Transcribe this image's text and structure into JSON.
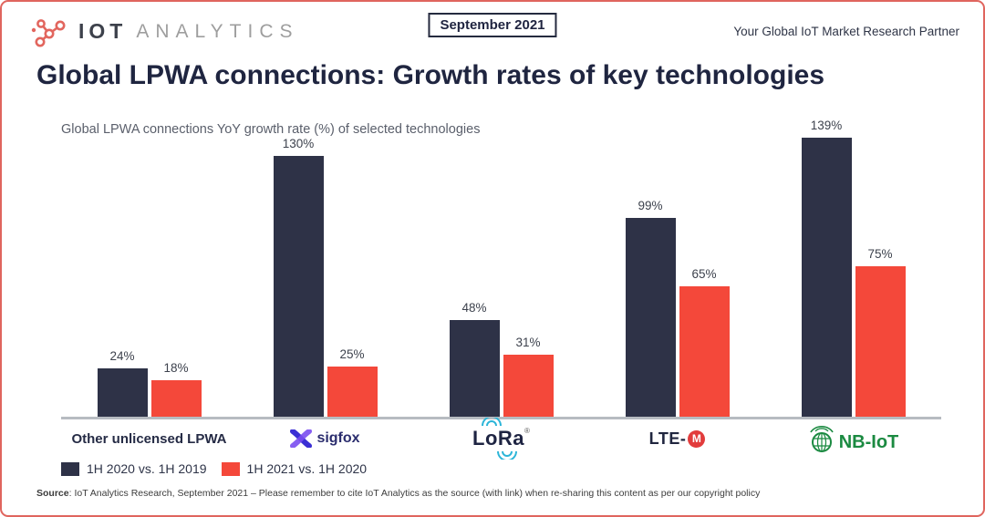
{
  "header": {
    "logo_iot": "IOT",
    "logo_analytics": "ANALYTICS",
    "date_badge": "September 2021",
    "tagline": "Your Global IoT Market Research Partner"
  },
  "title": {
    "bold": "Global LPWA connections:",
    "regular": " Growth rates of key technologies"
  },
  "subtitle": "Global LPWA connections YoY growth rate (%) of selected technologies",
  "chart_data": {
    "type": "bar",
    "title": "Global LPWA connections YoY growth rate (%) of selected technologies",
    "categories": [
      "Other unlicensed LPWA",
      "Sigfox",
      "LoRa",
      "LTE-M",
      "NB-IoT"
    ],
    "series": [
      {
        "name": "1H 2020 vs. 1H 2019",
        "color": "#2e3247",
        "values": [
          24,
          130,
          48,
          99,
          139
        ]
      },
      {
        "name": "1H 2021 vs. 1H 2020",
        "color": "#f4483a",
        "values": [
          18,
          25,
          31,
          65,
          75
        ]
      }
    ],
    "value_suffix": "%",
    "ylim": [
      0,
      139
    ],
    "grid": false,
    "legend_position": "bottom-left"
  },
  "category_labels": {
    "other": "Other unlicensed LPWA",
    "sigfox": "sigfox",
    "lora": "LoRa",
    "lora_mark": "®",
    "lte_prefix": "LTE-",
    "lte_m": "M",
    "nbiot": "NB-IoT"
  },
  "legend": [
    {
      "label": "1H 2020 vs. 1H 2019",
      "color": "#2e3247"
    },
    {
      "label": "1H 2021 vs. 1H 2020",
      "color": "#f4483a"
    }
  ],
  "source": {
    "label": "Source",
    "text": ": IoT Analytics Research, September 2021 – Please remember to cite IoT Analytics as the source (with link) when re-sharing this content as per our copyright policy"
  },
  "colors": {
    "bar_navy": "#2e3247",
    "bar_red": "#f4483a",
    "frame_red": "#e0655e",
    "title_navy": "#1f2540",
    "axis_gray": "#b7bbc1",
    "logo_coral": "#e2665e",
    "nbiot_green": "#1b8a41",
    "sigfox_purple": "#7a4ef0",
    "sigfox_blue": "#3b2fd4",
    "lora_cyan": "#2cb5d8",
    "ltem_red": "#e23c3c"
  }
}
